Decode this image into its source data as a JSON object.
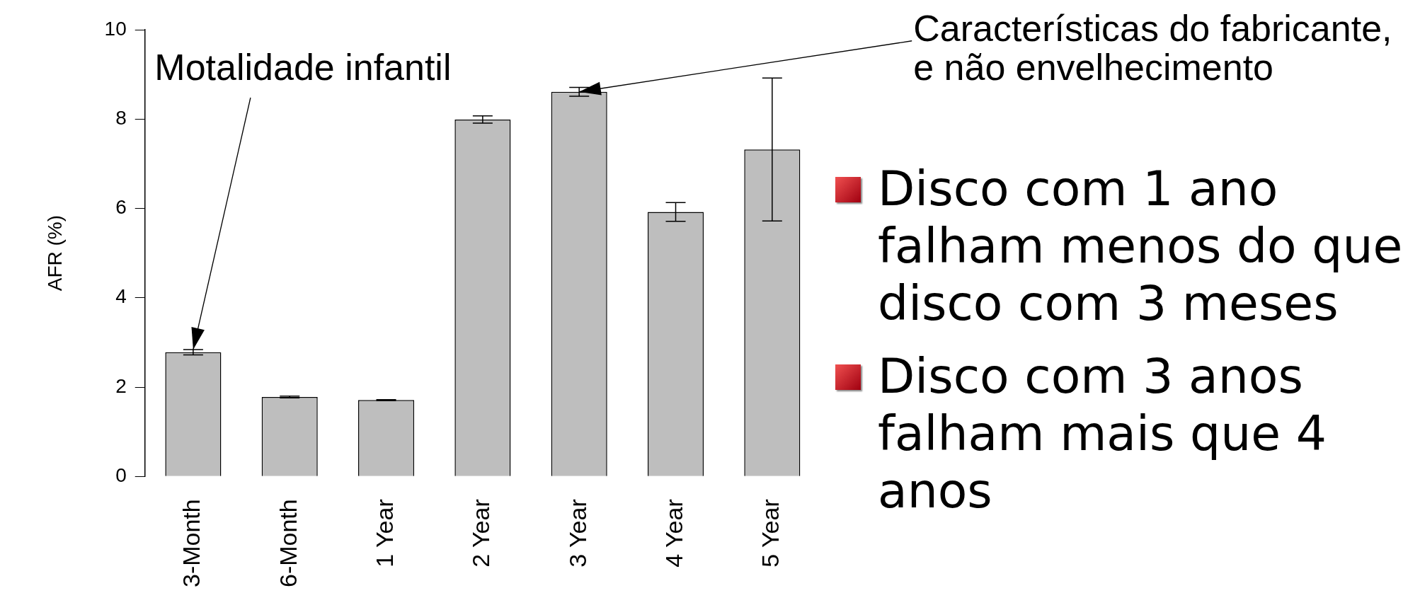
{
  "chart_data": {
    "type": "bar",
    "ylabel": "AFR (%)",
    "categories": [
      "3-Month",
      "6-Month",
      "1 Year",
      "2 Year",
      "3 Year",
      "4 Year",
      "5 Year"
    ],
    "values": [
      2.78,
      1.78,
      1.71,
      7.99,
      8.61,
      5.92,
      7.32
    ],
    "errors": [
      0.06,
      0.02,
      0.01,
      0.08,
      0.1,
      0.21,
      1.6
    ],
    "color": "#bebebe",
    "ylim": [
      0,
      10
    ],
    "yticks": [
      0,
      2,
      4,
      6,
      8,
      10
    ],
    "grid": false,
    "legend": false,
    "annotations": [
      {
        "text": "Motalidade infantil",
        "x": "3-Month",
        "y": 2.84
      },
      {
        "text": "Características do fabricante,\ne não envelhecimento",
        "x": "3 Year",
        "y": 8.61
      },
      "Disco com 1 ano falham menos do que disco com 3 meses",
      "Disco com 3 anos falham mais que 4 anos"
    ]
  }
}
